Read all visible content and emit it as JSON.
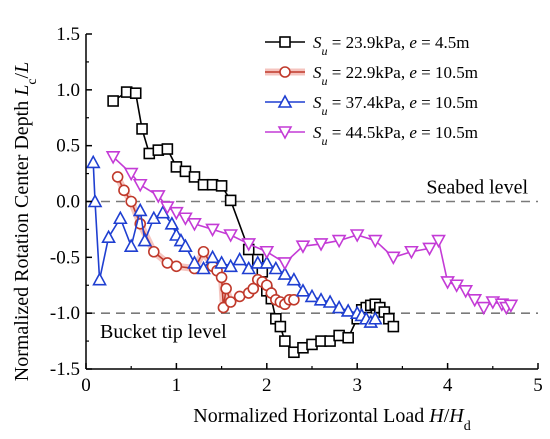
{
  "chart_data": {
    "type": "line",
    "title": "",
    "xlabel": "Normalized Horizontal Load H/H_d",
    "ylabel": "Normalized Rotation Center Depth L_c/L",
    "xlim": [
      0,
      5
    ],
    "ylim": [
      -1.5,
      1.5
    ],
    "x_ticks": [
      "0",
      "1",
      "2",
      "3",
      "4",
      "5"
    ],
    "y_ticks": [
      "1.5",
      "1.0",
      "0.5",
      "0.0",
      "-0.5",
      "-1.0",
      "-1.5"
    ],
    "grid": false,
    "legend_position": "top-right",
    "annotations": [
      {
        "text": "Seabed level",
        "y": 0.0
      },
      {
        "text": "Bucket tip level",
        "y": -1.0
      }
    ],
    "reference_lines": [
      0.0,
      -1.0
    ],
    "series": [
      {
        "name": "Su = 23.9kPa, e = 4.5m",
        "color": "#000000",
        "marker": "square",
        "x": [
          0.3,
          0.45,
          0.55,
          0.62,
          0.7,
          0.8,
          0.9,
          1.0,
          1.1,
          1.2,
          1.3,
          1.4,
          1.5,
          1.6,
          1.8,
          1.9,
          1.95,
          2.0,
          2.05,
          2.1,
          2.15,
          2.2,
          2.3,
          2.4,
          2.5,
          2.6,
          2.7,
          2.8,
          2.9,
          3.0,
          3.05,
          3.1,
          3.15,
          3.2,
          3.25,
          3.3,
          3.35,
          3.4
        ],
        "y": [
          0.9,
          0.98,
          0.97,
          0.65,
          0.43,
          0.46,
          0.47,
          0.31,
          0.27,
          0.22,
          0.15,
          0.15,
          0.14,
          0.01,
          -0.43,
          -0.52,
          -0.63,
          -0.8,
          -0.87,
          -1.05,
          -1.12,
          -1.25,
          -1.35,
          -1.31,
          -1.28,
          -1.25,
          -1.25,
          -1.2,
          -1.22,
          -1.05,
          -0.97,
          -0.95,
          -0.93,
          -0.92,
          -0.95,
          -0.99,
          -1.05,
          -1.12
        ]
      },
      {
        "name": "Su = 22.9kPa, e = 10.5m",
        "color": "#c0392b",
        "marker": "circle",
        "x": [
          0.35,
          0.42,
          0.5,
          0.6,
          0.75,
          0.9,
          1.0,
          1.2,
          1.3,
          1.4,
          1.45,
          1.5,
          1.52,
          1.55,
          1.6,
          1.7,
          1.8,
          1.85,
          1.9,
          1.95,
          2.0,
          2.05,
          2.1,
          2.15,
          2.2,
          2.25,
          2.3
        ],
        "y": [
          0.22,
          0.1,
          0.0,
          -0.2,
          -0.45,
          -0.55,
          -0.58,
          -0.6,
          -0.45,
          -0.58,
          -0.62,
          -0.68,
          -0.95,
          -0.78,
          -0.9,
          -0.85,
          -0.82,
          -0.78,
          -0.7,
          -0.72,
          -0.75,
          -0.82,
          -0.88,
          -0.9,
          -0.92,
          -0.88,
          -0.88
        ]
      },
      {
        "name": "Su = 37.4kPa, e = 10.5m",
        "color": "#1f3fd1",
        "marker": "triangle",
        "x": [
          0.08,
          0.1,
          0.15,
          0.25,
          0.38,
          0.5,
          0.6,
          0.65,
          0.75,
          0.85,
          0.95,
          1.0,
          1.05,
          1.1,
          1.2,
          1.3,
          1.4,
          1.5,
          1.6,
          1.7,
          1.8,
          1.9,
          2.0,
          2.1,
          2.2,
          2.3,
          2.4,
          2.5,
          2.6,
          2.7,
          2.8,
          2.9,
          3.0,
          3.05,
          3.1,
          3.15,
          3.2
        ],
        "y": [
          0.35,
          0.0,
          -0.7,
          -0.32,
          -0.15,
          -0.4,
          -0.08,
          -0.35,
          -0.15,
          -0.1,
          -0.2,
          -0.3,
          -0.35,
          -0.4,
          -0.55,
          -0.6,
          -0.5,
          -0.55,
          -0.58,
          -0.52,
          -0.6,
          -0.55,
          -0.55,
          -0.6,
          -0.65,
          -0.7,
          -0.8,
          -0.85,
          -0.88,
          -0.9,
          -0.95,
          -0.98,
          -1.0,
          -1.02,
          -1.05,
          -1.08,
          -1.05
        ]
      },
      {
        "name": "Su = 44.5kPa, e = 10.5m",
        "color": "#c43bd6",
        "marker": "triangle-down",
        "x": [
          0.3,
          0.5,
          0.6,
          0.8,
          0.9,
          1.0,
          1.1,
          1.2,
          1.4,
          1.6,
          1.8,
          2.0,
          2.2,
          2.4,
          2.6,
          2.8,
          3.0,
          3.2,
          3.4,
          3.6,
          3.8,
          3.9,
          4.0,
          4.1,
          4.2,
          4.3,
          4.4,
          4.5,
          4.6,
          4.65,
          4.7
        ],
        "y": [
          0.4,
          0.25,
          0.15,
          0.05,
          -0.05,
          -0.1,
          -0.15,
          -0.2,
          -0.25,
          -0.3,
          -0.38,
          -0.45,
          -0.55,
          -0.4,
          -0.38,
          -0.35,
          -0.3,
          -0.35,
          -0.5,
          -0.45,
          -0.42,
          -0.35,
          -0.72,
          -0.75,
          -0.8,
          -0.88,
          -0.95,
          -0.9,
          -0.92,
          -0.95,
          -0.93
        ]
      }
    ],
    "legend": [
      {
        "label": "S_u = 23.9kPa, e = 4.5m"
      },
      {
        "label": "S_u = 22.9kPa, e = 10.5m"
      },
      {
        "label": "S_u = 37.4kPa, e = 10.5m"
      },
      {
        "label": "S_u = 44.5kPa, e = 10.5m"
      }
    ]
  }
}
